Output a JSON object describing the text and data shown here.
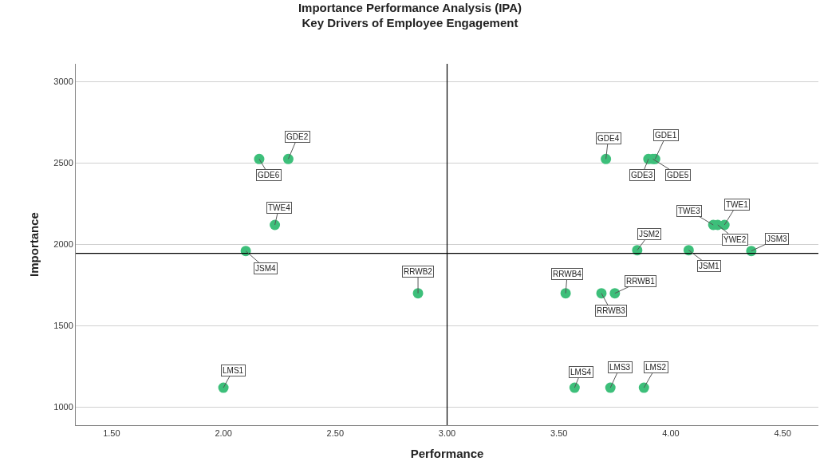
{
  "chart_data": {
    "type": "scatter",
    "title": "Importance Performance Analysis (IPA)",
    "subtitle": "Key Drivers of Employee Engagement",
    "xlabel": "Performance",
    "ylabel": "Importance",
    "x": [
      3.93,
      2.29,
      3.9,
      3.71,
      3.92,
      2.16,
      4.24,
      4.21,
      4.19,
      2.23,
      4.08,
      3.85,
      4.36,
      2.1,
      3.75,
      2.87,
      3.69,
      3.53,
      2.0,
      3.88,
      3.73,
      3.57
    ],
    "series": [
      {
        "color": "#3dbf7a",
        "values": [
          2525,
          2525,
          2525,
          2525,
          2525,
          2525,
          2120,
          2120,
          2120,
          2120,
          1965,
          1965,
          1960,
          1960,
          1700,
          1700,
          1700,
          1700,
          1120,
          1120,
          1120,
          1120
        ],
        "value_labels": [
          "GDE1",
          "GDE2",
          "GDE3",
          "GDE4",
          "GDE5",
          "GDE6",
          "TWE1",
          "YWE2",
          "TWE3",
          "TWE4",
          "JSM1",
          "JSM2",
          "JSM3",
          "JSM4",
          "RRWB1",
          "RRWB2",
          "RRWB3",
          "RRWB4",
          "LMS1",
          "LMS2",
          "LMS3",
          "LMS4"
        ]
      }
    ],
    "xlim": [
      1.34,
      4.66
    ],
    "xticks": [
      {
        "value": 1.5,
        "label": "1.50"
      },
      {
        "value": 2.0,
        "label": "2.00"
      },
      {
        "value": 2.5,
        "label": "2.50"
      },
      {
        "value": 3.0,
        "label": "3.00"
      },
      {
        "value": 3.5,
        "label": "3.50"
      },
      {
        "value": 4.0,
        "label": "4.00"
      },
      {
        "value": 4.5,
        "label": "4.50"
      }
    ],
    "ylim": [
      890,
      3110
    ],
    "yticks": [
      1000,
      1500,
      2000,
      2500,
      3000
    ],
    "ref_lines": [
      {
        "axis": "x",
        "value": 3.0,
        "color": "#000000"
      },
      {
        "axis": "y",
        "value": 1945,
        "color": "#000000"
      }
    ],
    "grid": "y",
    "marker": "circle"
  }
}
